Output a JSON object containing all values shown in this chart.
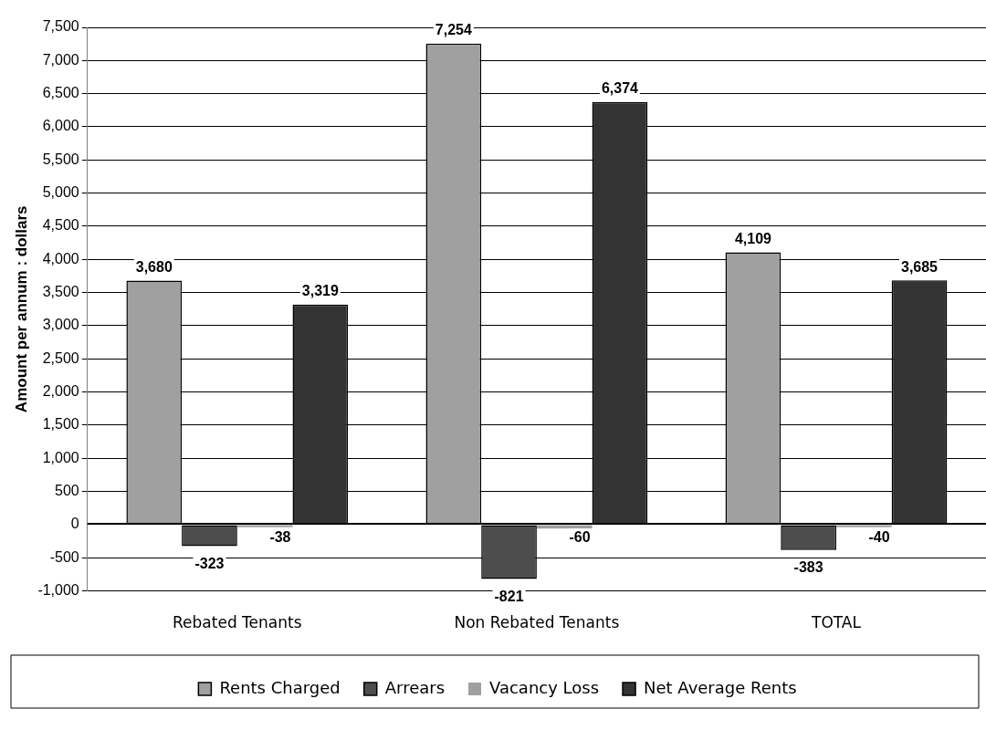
{
  "chart_data": {
    "type": "bar",
    "ylabel": "Amount per annum : dollars",
    "categories": [
      "Rebated Tenants",
      "Non Rebated Tenants",
      "TOTAL"
    ],
    "series": [
      {
        "name": "Rents Charged",
        "color": "#a0a0a0",
        "values": [
          3680,
          7254,
          4109
        ],
        "value_labels": [
          "3,680",
          "7,254",
          "4,109"
        ]
      },
      {
        "name": "Arrears",
        "color": "#4d4d4d",
        "values": [
          -323,
          -821,
          -383
        ],
        "value_labels": [
          "-323",
          "-821",
          "-383"
        ]
      },
      {
        "name": "Vacancy Loss",
        "color": "#a0a0a0",
        "values": [
          -38,
          -60,
          -40
        ],
        "value_labels": [
          "-38",
          "-60",
          "-40"
        ]
      },
      {
        "name": "Net Average Rents",
        "color": "#333333",
        "values": [
          3319,
          6374,
          3685
        ],
        "value_labels": [
          "3,319",
          "6,374",
          "3,685"
        ]
      }
    ],
    "ylim": [
      -1000,
      7500
    ],
    "yticks": [
      {
        "value": -1000,
        "label": "-1,000"
      },
      -500,
      0,
      500,
      {
        "value": 1000,
        "label": "1,000"
      },
      {
        "value": 1500,
        "label": "1,500"
      },
      {
        "value": 2000,
        "label": "2,000"
      },
      {
        "value": 2500,
        "label": "2,500"
      },
      {
        "value": 3000,
        "label": "3,000"
      },
      {
        "value": 3500,
        "label": "3,500"
      },
      {
        "value": 4000,
        "label": "4,000"
      },
      {
        "value": 4500,
        "label": "4,500"
      },
      {
        "value": 5000,
        "label": "5,000"
      },
      {
        "value": 5500,
        "label": "5,500"
      },
      {
        "value": 6000,
        "label": "6,000"
      },
      {
        "value": 6500,
        "label": "6,500"
      },
      {
        "value": 7000,
        "label": "7,000"
      },
      {
        "value": 7500,
        "label": "7,500"
      }
    ],
    "grid": "y",
    "legend": "bottom"
  }
}
